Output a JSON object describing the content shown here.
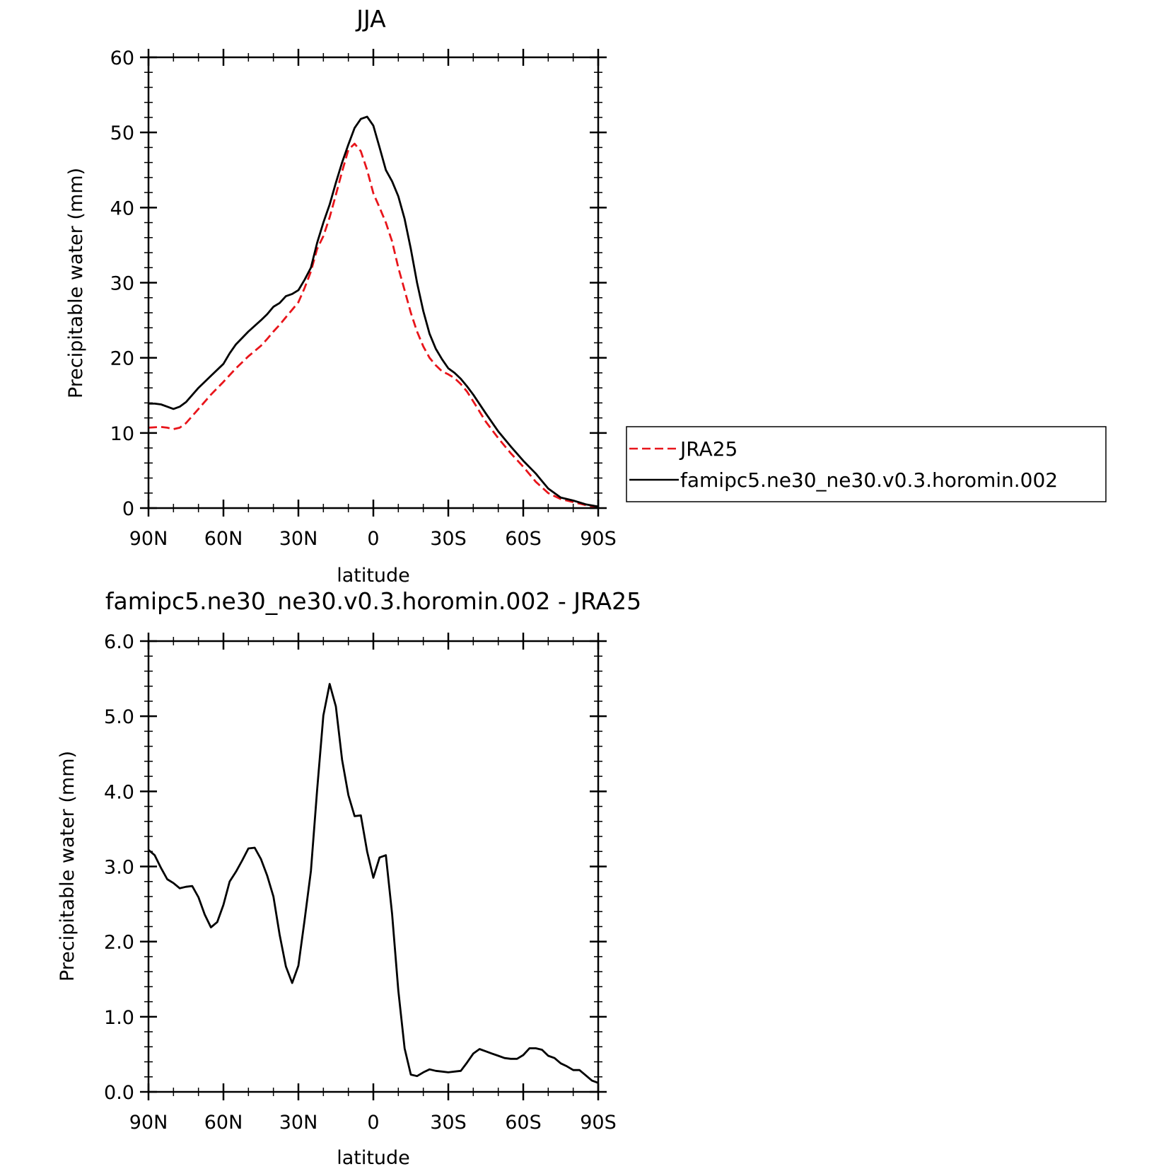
{
  "colors": {
    "jra25": "#e8151b",
    "model": "#000000",
    "frame": "#000000"
  },
  "chart_data": [
    {
      "type": "line",
      "title": "JJA",
      "xlabel": "latitude",
      "ylabel": "Precipitable water (mm)",
      "xlim": [
        90,
        -90
      ],
      "ylim": [
        0,
        60
      ],
      "yticks": [
        0,
        10,
        20,
        30,
        40,
        50,
        60
      ],
      "ytick_labels": [
        "0",
        "10",
        "20",
        "30",
        "40",
        "50",
        "60"
      ],
      "xticks": [
        90,
        60,
        30,
        0,
        -30,
        -60,
        -90
      ],
      "xtick_labels": [
        "90N",
        "60N",
        "30N",
        "0",
        "30S",
        "60S",
        "90S"
      ],
      "legend": {
        "placement": "right",
        "entries": [
          "JRA25",
          "famipc5.ne30_ne30.v0.3.horomin.002"
        ]
      },
      "series": [
        {
          "name": "JRA25",
          "color": "#e8151b",
          "dash": "dashed",
          "x": [
            90,
            85,
            82.5,
            80,
            77.5,
            75,
            70,
            65,
            60,
            55,
            50,
            45,
            42.5,
            40,
            37.5,
            35,
            32.5,
            30,
            27.5,
            25,
            22.5,
            20,
            17.5,
            15,
            12.5,
            10,
            7.5,
            5,
            2.5,
            0,
            -2.5,
            -5,
            -7.5,
            -10,
            -12.5,
            -15,
            -17.5,
            -20,
            -22.5,
            -25,
            -27.5,
            -30,
            -32.5,
            -35,
            -37.5,
            -40,
            -45,
            -50,
            -55,
            -60,
            -65,
            -70,
            -75,
            -80,
            -85,
            -90
          ],
          "y": [
            10.7,
            10.8,
            10.7,
            10.5,
            10.7,
            11.3,
            13.2,
            15.1,
            16.8,
            18.6,
            20.2,
            21.6,
            22.5,
            23.5,
            24.4,
            25.4,
            26.4,
            27.4,
            29.3,
            31.5,
            34.5,
            36.2,
            38.7,
            41.7,
            44.8,
            47.7,
            48.5,
            47.5,
            45.0,
            41.9,
            40.0,
            38.0,
            35.5,
            32.0,
            29.0,
            26.0,
            23.5,
            21.5,
            20.0,
            19.0,
            18.2,
            17.8,
            17.3,
            16.5,
            15.5,
            14.2,
            11.5,
            9.3,
            7.3,
            5.5,
            3.5,
            2.0,
            1.2,
            0.8,
            0.4,
            0.1
          ]
        },
        {
          "name": "famipc5.ne30_ne30.v0.3.horomin.002",
          "color": "#000000",
          "dash": "solid",
          "x": [
            90,
            87.5,
            85,
            82.5,
            80,
            77.5,
            75,
            70,
            65,
            60,
            57.5,
            55,
            50,
            45,
            42.5,
            40,
            37.5,
            35,
            32.5,
            30,
            27.5,
            25,
            22.5,
            20,
            17.5,
            15,
            12.5,
            10,
            7.5,
            5,
            2.5,
            0,
            -2.5,
            -5,
            -7.5,
            -10,
            -12.5,
            -15,
            -17.5,
            -20,
            -22.5,
            -25,
            -27.5,
            -30,
            -32.5,
            -35,
            -37.5,
            -40,
            -45,
            -50,
            -55,
            -60,
            -65,
            -70,
            -75,
            -80,
            -85,
            -90
          ],
          "y": [
            13.9,
            13.9,
            13.8,
            13.5,
            13.2,
            13.5,
            14.1,
            16.0,
            17.6,
            19.2,
            20.6,
            21.8,
            23.5,
            25.0,
            25.8,
            26.8,
            27.3,
            28.2,
            28.5,
            29.0,
            30.4,
            32.0,
            35.3,
            38.0,
            40.4,
            43.3,
            46.0,
            48.4,
            50.6,
            51.8,
            52.1,
            50.9,
            48.0,
            45.0,
            43.5,
            41.5,
            38.5,
            34.5,
            30.0,
            26.2,
            23.2,
            21.2,
            19.8,
            18.6,
            18.0,
            17.2,
            16.2,
            15.1,
            12.6,
            10.2,
            8.2,
            6.3,
            4.6,
            2.6,
            1.4,
            1.0,
            0.5,
            0.2
          ]
        }
      ]
    },
    {
      "type": "line",
      "title": "famipc5.ne30_ne30.v0.3.horomin.002 - JRA25",
      "xlabel": "latitude",
      "ylabel": "Precipitable water (mm)",
      "xlim": [
        90,
        -90
      ],
      "ylim": [
        0,
        6
      ],
      "yticks": [
        0,
        1,
        2,
        3,
        4,
        5,
        6
      ],
      "ytick_labels": [
        "0.0",
        "1.0",
        "2.0",
        "3.0",
        "4.0",
        "5.0",
        "6.0"
      ],
      "xticks": [
        90,
        60,
        30,
        0,
        -30,
        -60,
        -90
      ],
      "xtick_labels": [
        "90N",
        "60N",
        "30N",
        "0",
        "30S",
        "60S",
        "90S"
      ],
      "series": [
        {
          "color": "#000000",
          "dash": "solid",
          "x": [
            90,
            87.5,
            85,
            82.5,
            80,
            77.5,
            75,
            72.5,
            70,
            67.5,
            65,
            62.5,
            60,
            57.5,
            55,
            52.5,
            50,
            47.5,
            45,
            42.5,
            40,
            37.5,
            35,
            32.5,
            30,
            27.5,
            25,
            22.5,
            20,
            17.5,
            15,
            12.5,
            10,
            7.5,
            5,
            2.5,
            0,
            -2.5,
            -5,
            -7.5,
            -10,
            -12.5,
            -15,
            -17.5,
            -20,
            -22.5,
            -25,
            -27.5,
            -30,
            -32.5,
            -35,
            -37.5,
            -40,
            -42.5,
            -45,
            -47.5,
            -50,
            -52.5,
            -55,
            -57.5,
            -60,
            -62.5,
            -65,
            -67.5,
            -70,
            -72.5,
            -75,
            -77.5,
            -80,
            -82.5,
            -85,
            -87.5,
            -90
          ],
          "y": [
            3.22,
            3.15,
            2.98,
            2.83,
            2.78,
            2.71,
            2.73,
            2.74,
            2.59,
            2.36,
            2.19,
            2.26,
            2.49,
            2.8,
            2.93,
            3.08,
            3.24,
            3.25,
            3.1,
            2.88,
            2.6,
            2.09,
            1.67,
            1.45,
            1.68,
            2.29,
            2.94,
            4.02,
            5.01,
            5.43,
            5.13,
            4.42,
            3.95,
            3.67,
            3.68,
            3.2,
            2.85,
            3.12,
            3.15,
            2.37,
            1.35,
            0.58,
            0.23,
            0.21,
            0.26,
            0.3,
            0.28,
            0.27,
            0.26,
            0.27,
            0.28,
            0.39,
            0.51,
            0.57,
            0.54,
            0.51,
            0.48,
            0.45,
            0.44,
            0.44,
            0.49,
            0.58,
            0.58,
            0.56,
            0.48,
            0.45,
            0.38,
            0.34,
            0.29,
            0.29,
            0.22,
            0.15,
            0.12
          ]
        }
      ]
    }
  ]
}
